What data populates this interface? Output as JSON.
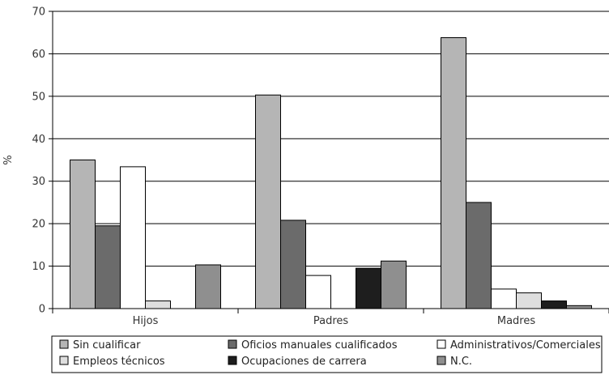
{
  "chart_data": {
    "type": "bar",
    "ylabel": "%",
    "ylim": [
      0,
      70
    ],
    "yticks": [
      0,
      10,
      20,
      30,
      40,
      50,
      60,
      70
    ],
    "grid": true,
    "legend_position": "bottom",
    "categories": [
      "Hijos",
      "Padres",
      "Madres"
    ],
    "series": [
      {
        "name": "Sin cualificar",
        "color": "#b5b5b5",
        "values": [
          35.0,
          50.3,
          63.8
        ]
      },
      {
        "name": "Oficios manuales cualificados",
        "color": "#6b6b6b",
        "values": [
          19.5,
          20.8,
          25.0
        ]
      },
      {
        "name": "Administrativos/Comerciales",
        "color": "#ffffff",
        "values": [
          33.4,
          7.8,
          4.6
        ]
      },
      {
        "name": "Empleos técnicos",
        "color": "#dedede",
        "values": [
          1.8,
          0.0,
          3.7
        ]
      },
      {
        "name": "Ocupaciones de carrera",
        "color": "#1e1e1e",
        "values": [
          0.0,
          9.5,
          1.8
        ]
      },
      {
        "name": "N.C.",
        "color": "#8f8f8f",
        "values": [
          10.3,
          11.2,
          0.7
        ]
      }
    ]
  }
}
